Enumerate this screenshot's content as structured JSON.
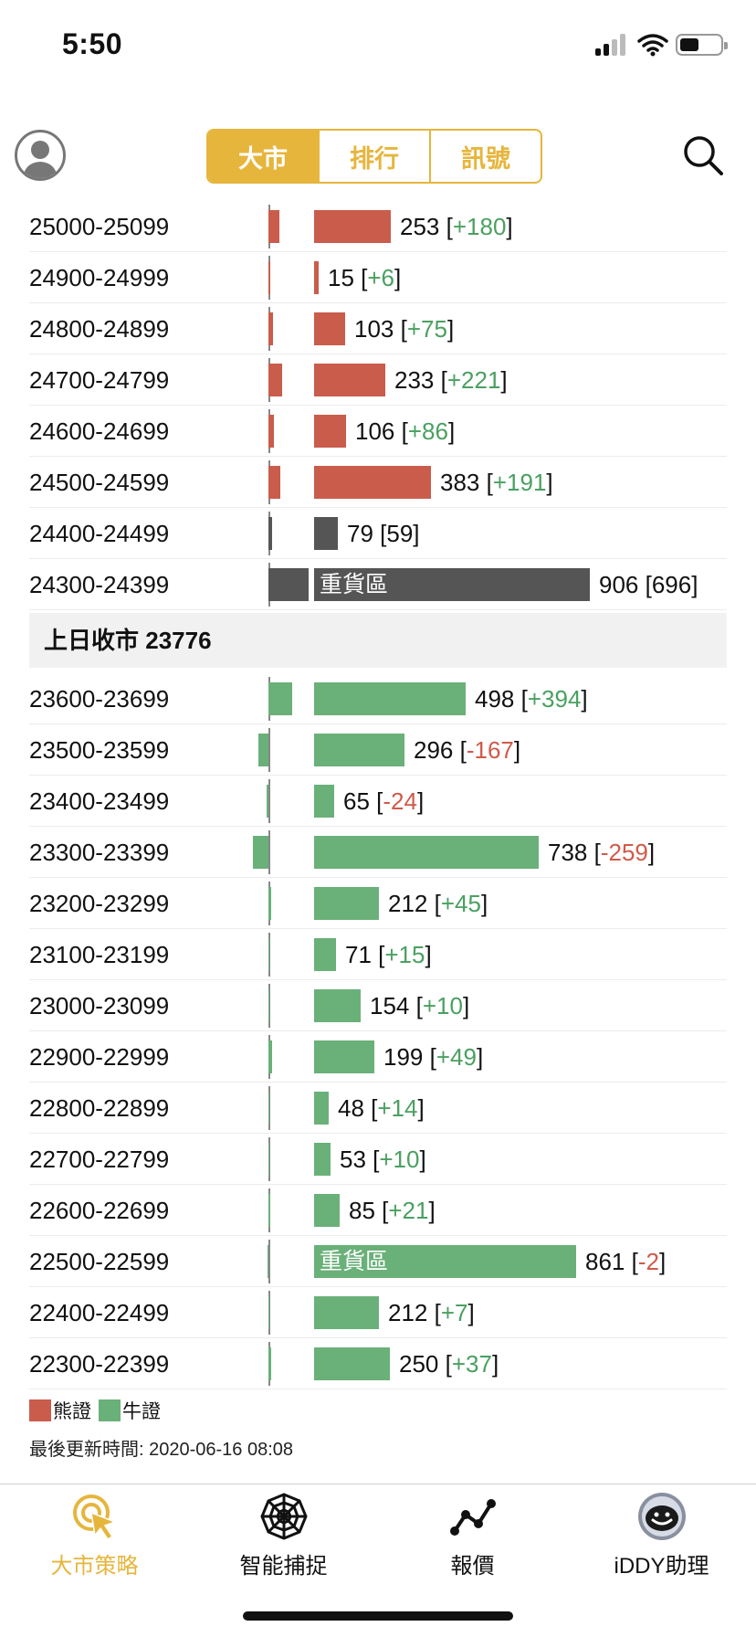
{
  "status": {
    "time": "5:50"
  },
  "tabs": [
    {
      "label": "大市",
      "active": true
    },
    {
      "label": "排行",
      "active": false
    },
    {
      "label": "訊號",
      "active": false
    }
  ],
  "rows_upper": [
    {
      "range": "25000-25099",
      "count": "253",
      "delta": "+180",
      "sign": "pos",
      "color": "bear",
      "small": 12,
      "small_dir": "right"
    },
    {
      "range": "24900-24999",
      "count": "15",
      "delta": "+6",
      "sign": "pos",
      "color": "bear",
      "small": 2,
      "small_dir": "right"
    },
    {
      "range": "24800-24899",
      "count": "103",
      "delta": "+75",
      "sign": "pos",
      "color": "bear",
      "small": 5,
      "small_dir": "right"
    },
    {
      "range": "24700-24799",
      "count": "233",
      "delta": "+221",
      "sign": "pos",
      "color": "bear",
      "small": 15,
      "small_dir": "right"
    },
    {
      "range": "24600-24699",
      "count": "106",
      "delta": "+86",
      "sign": "pos",
      "color": "bear",
      "small": 6,
      "small_dir": "right"
    },
    {
      "range": "24500-24599",
      "count": "383",
      "delta": "+191",
      "sign": "pos",
      "color": "bear",
      "small": 13,
      "small_dir": "right"
    },
    {
      "range": "24400-24499",
      "count": "79",
      "delta": "59",
      "sign": "none",
      "color": "gray",
      "small": 4,
      "small_dir": "right"
    },
    {
      "range": "24300-24399",
      "count": "906",
      "delta": "696",
      "sign": "none",
      "color": "gray",
      "small": 44,
      "small_dir": "right",
      "zone": "重貨區"
    }
  ],
  "prev_close": {
    "label": "上日收市",
    "value": "23776"
  },
  "rows_lower": [
    {
      "range": "23600-23699",
      "count": "498",
      "delta": "+394",
      "sign": "pos",
      "color": "bull",
      "small": 26,
      "small_dir": "right"
    },
    {
      "range": "23500-23599",
      "count": "296",
      "delta": "-167",
      "sign": "neg",
      "color": "bull",
      "small": 11,
      "small_dir": "left"
    },
    {
      "range": "23400-23499",
      "count": "65",
      "delta": "-24",
      "sign": "neg",
      "color": "bull",
      "small": 2,
      "small_dir": "left"
    },
    {
      "range": "23300-23399",
      "count": "738",
      "delta": "-259",
      "sign": "neg",
      "color": "bull",
      "small": 17,
      "small_dir": "left"
    },
    {
      "range": "23200-23299",
      "count": "212",
      "delta": "+45",
      "sign": "pos",
      "color": "bull",
      "small": 3,
      "small_dir": "right"
    },
    {
      "range": "23100-23199",
      "count": "71",
      "delta": "+15",
      "sign": "pos",
      "color": "bull",
      "small": 1,
      "small_dir": "right"
    },
    {
      "range": "23000-23099",
      "count": "154",
      "delta": "+10",
      "sign": "pos",
      "color": "bull",
      "small": 1,
      "small_dir": "right"
    },
    {
      "range": "22900-22999",
      "count": "199",
      "delta": "+49",
      "sign": "pos",
      "color": "bull",
      "small": 4,
      "small_dir": "right"
    },
    {
      "range": "22800-22899",
      "count": "48",
      "delta": "+14",
      "sign": "pos",
      "color": "bull",
      "small": 1,
      "small_dir": "right"
    },
    {
      "range": "22700-22799",
      "count": "53",
      "delta": "+10",
      "sign": "pos",
      "color": "bull",
      "small": 1,
      "small_dir": "right"
    },
    {
      "range": "22600-22699",
      "count": "85",
      "delta": "+21",
      "sign": "pos",
      "color": "bull",
      "small": 2,
      "small_dir": "right"
    },
    {
      "range": "22500-22599",
      "count": "861",
      "delta": "-2",
      "sign": "neg",
      "color": "bull",
      "small": 1,
      "small_dir": "left",
      "zone": "重貨區"
    },
    {
      "range": "22400-22499",
      "count": "212",
      "delta": "+7",
      "sign": "pos",
      "color": "bull",
      "small": 1,
      "small_dir": "right"
    },
    {
      "range": "22300-22399",
      "count": "250",
      "delta": "+37",
      "sign": "pos",
      "color": "bull",
      "small": 3,
      "small_dir": "right"
    }
  ],
  "legend": {
    "bear": "熊證",
    "bull": "牛證"
  },
  "updated": "最後更新時間: 2020-06-16 08:08",
  "nav": [
    {
      "label": "大市策略",
      "icon": "target-cursor-icon",
      "active": true
    },
    {
      "label": "智能捕捉",
      "icon": "spider-web-icon",
      "active": false
    },
    {
      "label": "報價",
      "icon": "line-chart-icon",
      "active": false
    },
    {
      "label": "iDDY助理",
      "icon": "robot-assistant-icon",
      "active": false
    }
  ],
  "colors": {
    "accent": "#e6b53c",
    "bear": "#c95c4b",
    "bull": "#6ab079",
    "gray": "#555555",
    "positive_text": "#4aa060",
    "negative_text": "#d05a48"
  }
}
